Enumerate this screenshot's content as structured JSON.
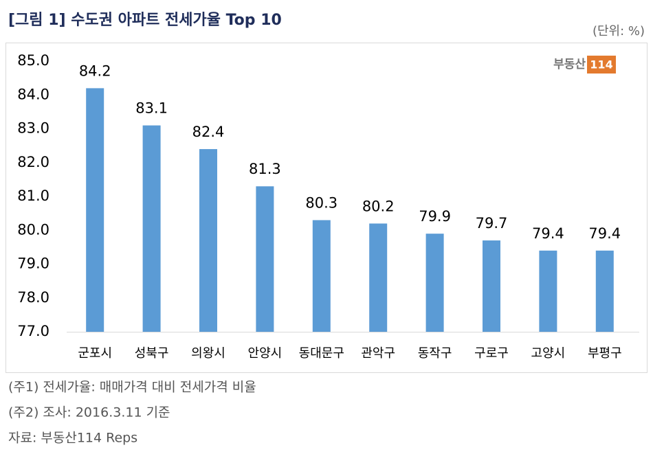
{
  "chart_data": {
    "type": "bar",
    "title": "[그림 1] 수도권 아파트 전세가율 Top 10",
    "unit_label": "(단위: %)",
    "logo": {
      "text": "부동산",
      "badge": "114"
    },
    "categories": [
      "군포시",
      "성북구",
      "의왕시",
      "안양시",
      "동대문구",
      "관악구",
      "동작구",
      "구로구",
      "고양시",
      "부평구"
    ],
    "values": [
      84.2,
      83.1,
      82.4,
      81.3,
      80.3,
      80.2,
      79.9,
      79.7,
      79.4,
      79.4
    ],
    "color": "#5b9bd5",
    "ylim": [
      77,
      85
    ],
    "yticks": [
      {
        "value": 77,
        "label": "77.0"
      },
      {
        "value": 78,
        "label": "78.0"
      },
      {
        "value": 79,
        "label": "79.0"
      },
      {
        "value": 80,
        "label": "80.0"
      },
      {
        "value": 81,
        "label": "81.0"
      },
      {
        "value": 82,
        "label": "82.0"
      },
      {
        "value": 83,
        "label": "83.0"
      },
      {
        "value": 84,
        "label": "84.0"
      },
      {
        "value": 85,
        "label": "85.0"
      }
    ],
    "grid": false,
    "notes": [
      "(주1) 전세가율: 매매가격 대비 전세가격 비율",
      "(주2) 조사: 2016.3.11 기준",
      "자료: 부동산114 Reps"
    ]
  }
}
